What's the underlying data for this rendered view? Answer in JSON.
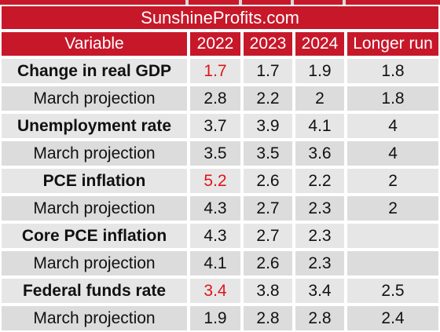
{
  "source": "SunshineProfits.com",
  "header": [
    "Variable",
    "2022",
    "2023",
    "2024",
    "Longer run"
  ],
  "rows": [
    {
      "label": "Change in real GDP",
      "bold": true,
      "values": [
        "1.7",
        "1.7",
        "1.9",
        "1.8"
      ],
      "red": [
        true,
        false,
        false,
        false
      ]
    },
    {
      "label": "March projection",
      "bold": false,
      "values": [
        "2.8",
        "2.2",
        "2",
        "1.8"
      ],
      "red": [
        false,
        false,
        false,
        false
      ]
    },
    {
      "label": "Unemployment rate",
      "bold": true,
      "values": [
        "3.7",
        "3.9",
        "4.1",
        "4"
      ],
      "red": [
        false,
        false,
        false,
        false
      ]
    },
    {
      "label": "March projection",
      "bold": false,
      "values": [
        "3.5",
        "3.5",
        "3.6",
        "4"
      ],
      "red": [
        false,
        false,
        false,
        false
      ]
    },
    {
      "label": "PCE inflation",
      "bold": true,
      "values": [
        "5.2",
        "2.6",
        "2.2",
        "2"
      ],
      "red": [
        true,
        false,
        false,
        false
      ]
    },
    {
      "label": "March projection",
      "bold": false,
      "values": [
        "4.3",
        "2.7",
        "2.3",
        "2"
      ],
      "red": [
        false,
        false,
        false,
        false
      ]
    },
    {
      "label": "Core PCE inflation",
      "bold": true,
      "values": [
        "4.3",
        "2.7",
        "2.3",
        ""
      ],
      "red": [
        false,
        false,
        false,
        false
      ]
    },
    {
      "label": "March projection",
      "bold": false,
      "values": [
        "4.1",
        "2.6",
        "2.3",
        ""
      ],
      "red": [
        false,
        false,
        false,
        false
      ]
    },
    {
      "label": "Federal funds rate",
      "bold": true,
      "values": [
        "3.4",
        "3.8",
        "3.4",
        "2.5"
      ],
      "red": [
        true,
        false,
        false,
        false
      ]
    },
    {
      "label": "March projection",
      "bold": false,
      "values": [
        "1.9",
        "2.8",
        "2.8",
        "2.4"
      ],
      "red": [
        false,
        false,
        false,
        false
      ]
    }
  ],
  "colors": {
    "header_bg": "#c7182a",
    "highlight_text": "#e0151c",
    "cell_bg": "#e6e6e6"
  }
}
